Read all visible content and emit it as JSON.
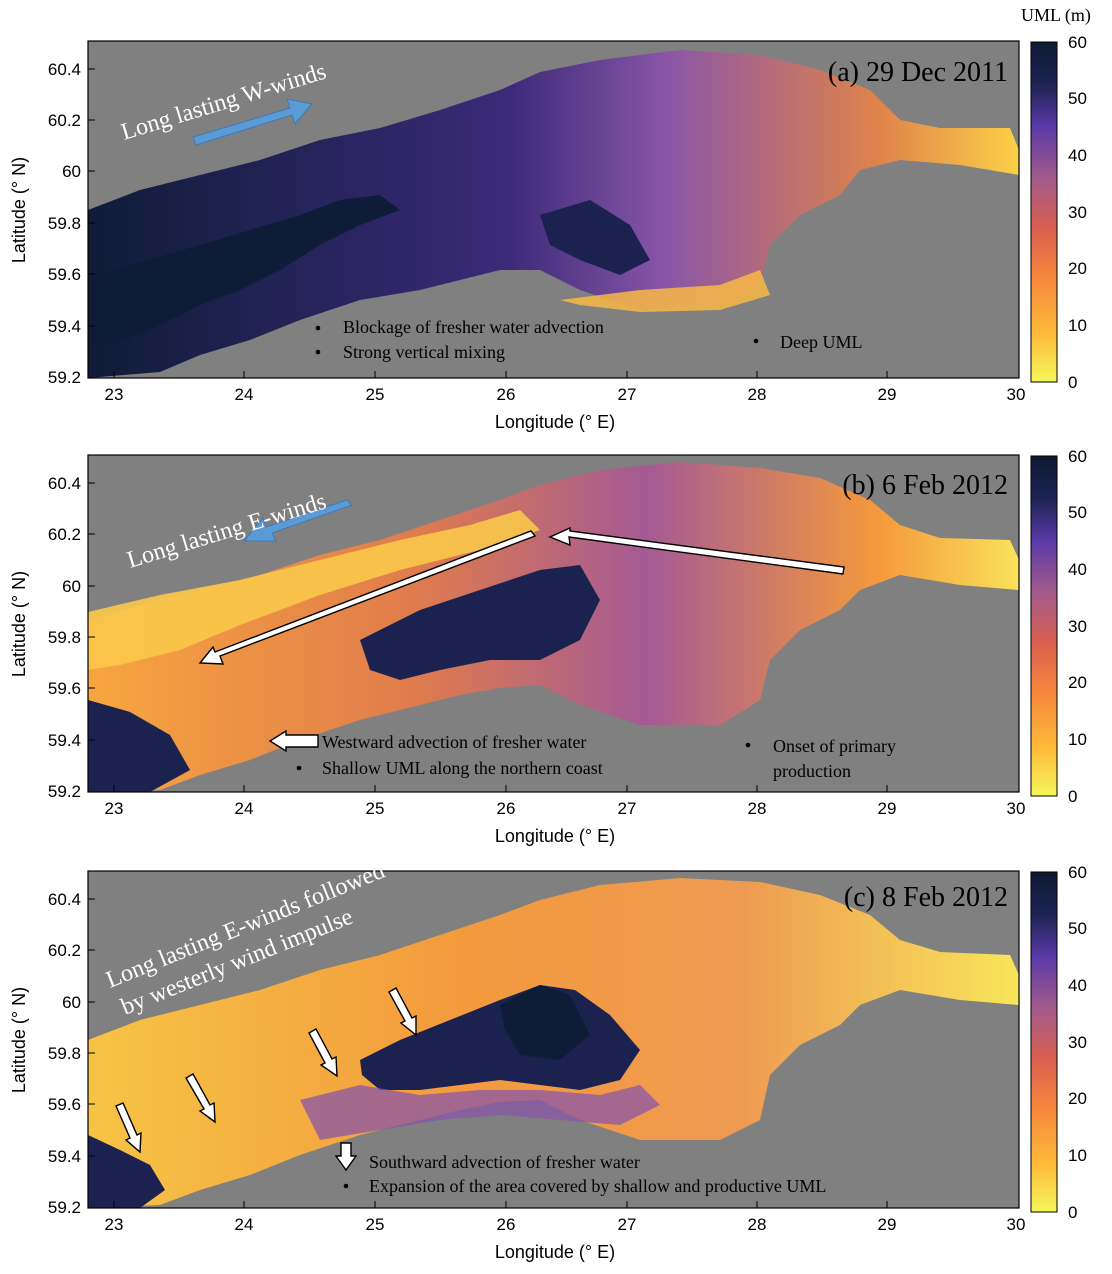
{
  "colorbar": {
    "title": "UML (m)",
    "ticks": [
      "0",
      "10",
      "20",
      "30",
      "40",
      "50",
      "60"
    ],
    "range": [
      0,
      60
    ],
    "stops": [
      "#f5f75a",
      "#fdbb3a",
      "#f7893c",
      "#d8604e",
      "#a35a8b",
      "#5a3aa8",
      "#1b2250",
      "#0e1a33"
    ]
  },
  "axes": {
    "xlabel": "Longitude (° E)",
    "ylabel": "Latitude (° N)",
    "xticks": [
      "23",
      "24",
      "25",
      "26",
      "27",
      "28",
      "29",
      "30"
    ],
    "yticks": [
      "59.2",
      "59.4",
      "59.6",
      "59.8",
      "60",
      "60.2",
      "60.4"
    ]
  },
  "colors": {
    "land": "#808080",
    "shallow": "#f8ea55",
    "mid": "#f7933b",
    "purple": "#8a55a8",
    "deep": "#0f1c38",
    "wind_arrow": "#5b9bd5"
  },
  "panels": [
    {
      "title": "(a) 29 Dec 2011",
      "wind_text": [
        "Long lasting W-winds"
      ],
      "notes": [
        "Blockage of fresher water advection",
        "Strong vertical mixing",
        "Deep UML"
      ]
    },
    {
      "title": "(b) 6 Feb 2012",
      "wind_text": [
        "Long lasting E-winds"
      ],
      "notes": [
        "Westward advection of fresher water",
        "Shallow UML along the northern coast",
        "Onset of primary",
        "production"
      ]
    },
    {
      "title": "(c) 8 Feb 2012",
      "wind_text": [
        "Long lasting E-winds followed",
        "by westerly wind impulse"
      ],
      "notes": [
        "Southward advection of fresher water",
        "Expansion of the area covered by shallow and productive UML"
      ]
    }
  ]
}
